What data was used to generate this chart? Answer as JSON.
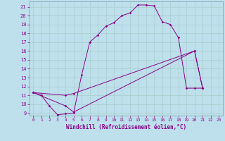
{
  "xlabel": "Windchill (Refroidissement éolien,°C)",
  "bg_color": "#bde0ec",
  "line_color": "#880088",
  "grid_color": "#aacccc",
  "xmin": -0.5,
  "xmax": 23.5,
  "ymin": 8.7,
  "ymax": 21.6,
  "line1_x": [
    0,
    1,
    2,
    3,
    4,
    5,
    6,
    7,
    8,
    9,
    10,
    11,
    12,
    13,
    14,
    15,
    16,
    17,
    18,
    19,
    20,
    21
  ],
  "line1_y": [
    11.3,
    11.0,
    9.8,
    8.8,
    8.9,
    9.0,
    13.3,
    17.0,
    17.8,
    18.8,
    19.2,
    20.0,
    20.3,
    21.2,
    21.2,
    21.1,
    19.3,
    19.0,
    17.5,
    11.8,
    11.8,
    11.8
  ],
  "line2_x": [
    0,
    4,
    5,
    20,
    21
  ],
  "line2_y": [
    11.3,
    11.0,
    11.2,
    16.0,
    11.8
  ],
  "line3_x": [
    0,
    4,
    5,
    20,
    21
  ],
  "line3_y": [
    11.3,
    9.8,
    9.1,
    16.0,
    11.8
  ],
  "yticks": [
    9,
    10,
    11,
    12,
    13,
    14,
    15,
    16,
    17,
    18,
    19,
    20,
    21
  ],
  "xticks": [
    0,
    1,
    2,
    3,
    4,
    5,
    6,
    7,
    8,
    9,
    10,
    11,
    12,
    13,
    14,
    15,
    16,
    17,
    18,
    19,
    20,
    21,
    22,
    23
  ]
}
